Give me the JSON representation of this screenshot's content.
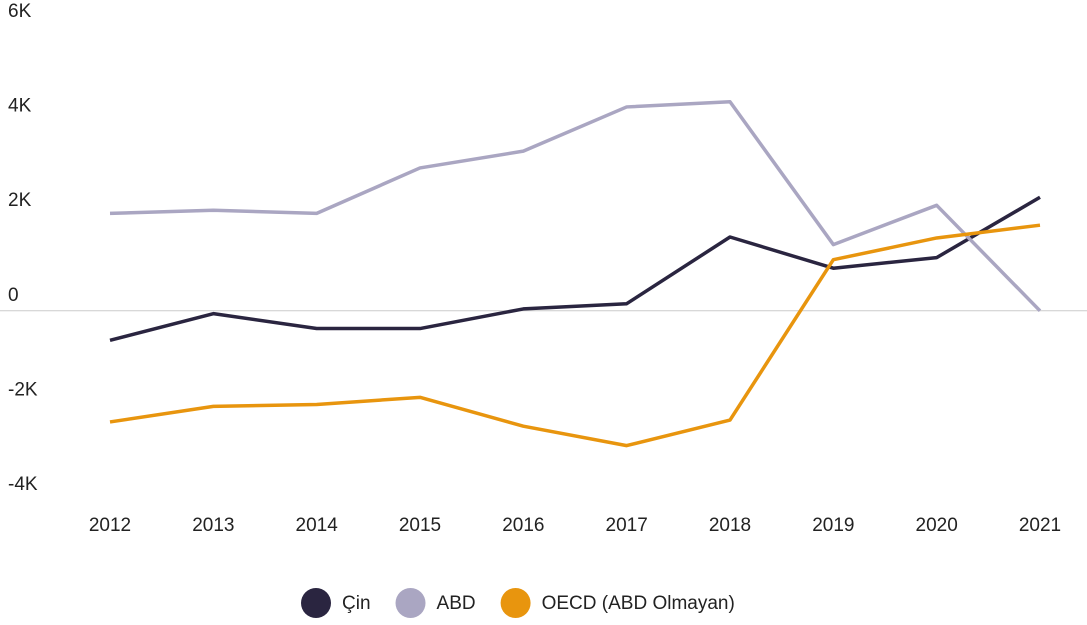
{
  "chart_data": {
    "type": "line",
    "categories": [
      "2012",
      "2013",
      "2014",
      "2015",
      "2016",
      "2017",
      "2018",
      "2019",
      "2020",
      "2021"
    ],
    "series": [
      {
        "name": "Çin",
        "color": "#2a2540",
        "values": [
          -625,
          -60,
          -375,
          -375,
          40,
          150,
          1560,
          900,
          1125,
          2400
        ]
      },
      {
        "name": "ABD",
        "color": "#aaa6c2",
        "values": [
          2060,
          2125,
          2060,
          3020,
          3375,
          4310,
          4420,
          1400,
          2230,
          0
        ]
      },
      {
        "name": "OECD (ABD Olmayan)",
        "color": "#e8950e",
        "values": [
          -2350,
          -2020,
          -1980,
          -1830,
          -2440,
          -2850,
          -2310,
          1080,
          1540,
          1810
        ]
      }
    ],
    "ylim": [
      -4000,
      6000
    ],
    "yticks": [
      {
        "value": -4000,
        "label": "-4K"
      },
      {
        "value": -2000,
        "label": "-2K"
      },
      0,
      {
        "value": 2000,
        "label": "2K"
      },
      {
        "value": 4000,
        "label": "4K"
      },
      {
        "value": 6000,
        "label": "6K"
      }
    ],
    "zero_line": true,
    "legend": "bottom"
  }
}
